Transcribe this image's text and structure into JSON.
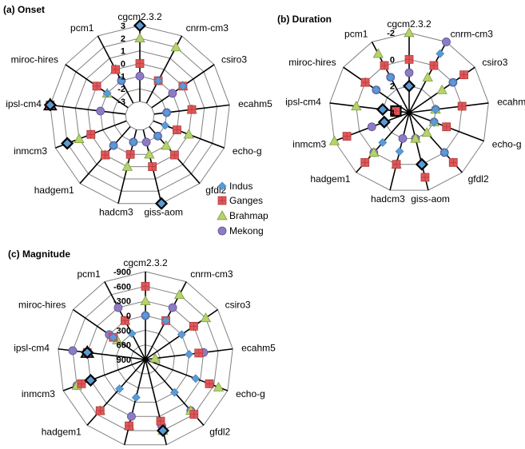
{
  "legend": [
    "Indus",
    "Ganges",
    "Brahmap",
    "Mekong"
  ],
  "colors": {
    "Indus": "#5b9bd5",
    "Ganges": "#e15759",
    "Brahmap": "#b5d36b",
    "Mekong": "#8e7cc3",
    "grid": "#808080",
    "highlight": "#000000"
  },
  "chart_data": [
    {
      "type": "radar",
      "title": "(a) Onset",
      "categories": [
        "cgcm2.3.2",
        "cnrm-cm3",
        "csiro3",
        "ecahm5",
        "echo-g",
        "gfdl2",
        "giss-aom",
        "hadcm3",
        "hadgem1",
        "inmcm3",
        "ipsl-cm4",
        "miroc-hires",
        "pcm1"
      ],
      "tick_labels": [
        "3",
        "2",
        "1",
        "0",
        "-1",
        "-2",
        "-3"
      ],
      "rmax": 3,
      "rmin": -3,
      "highlighted": [
        {
          "series": "Indus",
          "category": "cgcm2.3.2"
        },
        {
          "series": "Indus",
          "category": "giss-aom"
        },
        {
          "series": "Indus",
          "category": "inmcm3"
        },
        {
          "series": "Indus",
          "category": "ipsl-cm4"
        },
        {
          "series": "Brahmap",
          "category": "ipsl-cm4"
        }
      ],
      "series": [
        {
          "name": "Indus",
          "values": [
            3,
            -1,
            0,
            -2,
            -2,
            -2,
            3,
            -2,
            -1,
            2,
            3,
            -1,
            -1
          ]
        },
        {
          "name": "Ganges",
          "values": [
            0,
            -1,
            0,
            0,
            -1,
            0,
            0,
            -1,
            0,
            0,
            3,
            0,
            0
          ]
        },
        {
          "name": "Brahmap",
          "values": [
            2,
            2,
            0,
            0,
            0,
            -1,
            -1,
            0,
            0,
            1,
            3,
            -1,
            0
          ]
        },
        {
          "name": "Mekong",
          "values": [
            -1,
            -1,
            -1,
            -2,
            -1,
            -2,
            -2,
            -2,
            -1,
            0,
            -1,
            0,
            -1
          ]
        }
      ]
    },
    {
      "type": "radar",
      "title": "(b) Duration",
      "categories": [
        "cgcm2.3.2",
        "cnrm-cm3",
        "csiro3",
        "ecahm5",
        "echo-g",
        "gfdl2",
        "giss-aom",
        "hadcm3",
        "hadgem1",
        "inmcm3",
        "ipsl-cm4",
        "miroc-hires",
        "pcm1"
      ],
      "tick_labels": [
        "-2",
        "0",
        "2",
        "4"
      ],
      "rmax": -2,
      "rmin": 4,
      "highlighted": [
        {
          "series": "Indus",
          "category": "cgcm2.3.2"
        },
        {
          "series": "Indus",
          "category": "giss-aom"
        },
        {
          "series": "Indus",
          "category": "inmcm3"
        },
        {
          "series": "Indus",
          "category": "ipsl-cm4"
        },
        {
          "series": "Ganges",
          "category": "ipsl-cm4"
        }
      ],
      "series": [
        {
          "name": "Indus",
          "values": [
            2,
            -1,
            0,
            2,
            2,
            0,
            0,
            1,
            1,
            2,
            2,
            1,
            1
          ]
        },
        {
          "name": "Ganges",
          "values": [
            0,
            0,
            -1,
            0,
            1,
            -1,
            -1,
            0,
            -1,
            -1,
            3,
            0,
            0
          ]
        },
        {
          "name": "Brahmap",
          "values": [
            -2,
            1,
            1,
            2,
            2,
            2,
            2,
            0,
            0,
            -2,
            0,
            0,
            -1
          ]
        },
        {
          "name": "Mekong",
          "values": [
            1,
            -2,
            0,
            2,
            2,
            0,
            2,
            2,
            0,
            1,
            2,
            1,
            1
          ]
        }
      ]
    },
    {
      "type": "radar",
      "title": "(c) Magnitude",
      "categories": [
        "cgcm2.3.2",
        "cnrm-cm3",
        "csiro3",
        "ecahm5",
        "echo-g",
        "gfdl2",
        "giss-aom",
        "hadcm3",
        "hadgem1",
        "inmcm3",
        "ipsl-cm4",
        "miroc-hires",
        "pcm1"
      ],
      "tick_labels": [
        "-900",
        "-600",
        "-300",
        "0",
        "300",
        "600",
        "900"
      ],
      "rmax": -900,
      "rmin": 900,
      "highlighted": [
        {
          "series": "Indus",
          "category": "giss-aom"
        },
        {
          "series": "Indus",
          "category": "inmcm3"
        },
        {
          "series": "Indus",
          "category": "ipsl-cm4"
        },
        {
          "series": "Brahmap",
          "category": "ipsl-cm4"
        }
      ],
      "series": [
        {
          "name": "Indus",
          "values": [
            0,
            0,
            0,
            0,
            -200,
            0,
            -600,
            100,
            100,
            -300,
            -300,
            100,
            300
          ]
        },
        {
          "name": "Ganges",
          "values": [
            -600,
            0,
            -300,
            -200,
            -500,
            -600,
            -400,
            -500,
            -500,
            -500,
            -300,
            100,
            0
          ]
        },
        {
          "name": "Brahmap",
          "values": [
            -300,
            -600,
            -600,
            700,
            -700,
            -500,
            -600,
            -500,
            -500,
            -600,
            -300,
            200,
            0
          ]
        },
        {
          "name": "Mekong",
          "values": [
            0,
            -300,
            -300,
            -300,
            -500,
            -500,
            -500,
            -300,
            -500,
            -600,
            -600,
            0,
            -300
          ]
        }
      ]
    }
  ]
}
